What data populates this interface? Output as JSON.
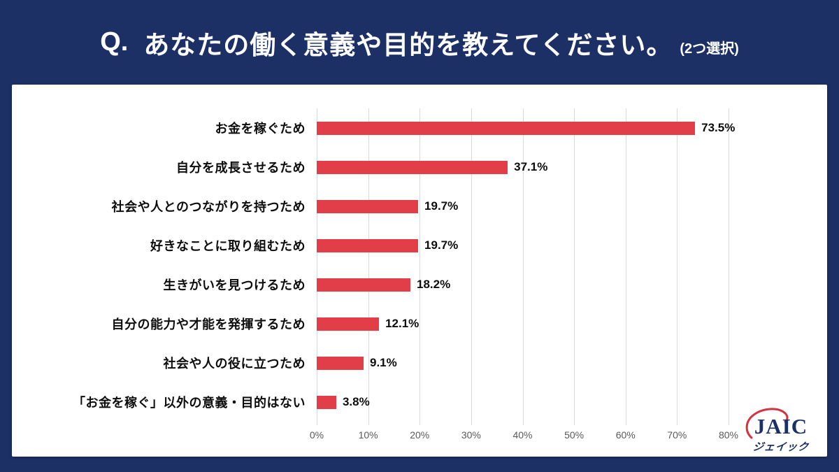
{
  "header": {
    "title_q": "Q.",
    "title_main": "あなたの働く意義や目的を教えてください。",
    "title_note": "(2つ選択)"
  },
  "chart_data": {
    "type": "bar",
    "orientation": "horizontal",
    "title": "あなたの働く意義や目的を教えてください。(2つ選択)",
    "categories": [
      "お金を稼ぐため",
      "自分を成長させるため",
      "社会や人とのつながりを持つため",
      "好きなことに取り組むため",
      "生きがいを見つけるため",
      "自分の能力や才能を発揮するため",
      "社会や人の役に立つため",
      "「お金を稼ぐ」以外の意義・目的はない"
    ],
    "values": [
      73.5,
      37.1,
      19.7,
      19.7,
      18.2,
      12.1,
      9.1,
      3.8
    ],
    "value_labels": [
      "73.5%",
      "37.1%",
      "19.7%",
      "19.7%",
      "18.2%",
      "12.1%",
      "9.1%",
      "3.8%"
    ],
    "x_ticks": [
      "0%",
      "10%",
      "20%",
      "30%",
      "40%",
      "50%",
      "60%",
      "70%",
      "80%"
    ],
    "xlim": [
      0,
      80
    ],
    "grid": true,
    "legend": false
  },
  "logo": {
    "name": "JAIC",
    "subtext": "ジェイック"
  },
  "colors": {
    "background": "#1c3066",
    "card": "#ffffff",
    "bar": "#e23e48",
    "grid": "#d9d9d9",
    "axis_text": "#595959",
    "label_text": "#0d0d0d",
    "title_text": "#ffffff",
    "logo_navy": "#1c3066",
    "logo_red": "#d6313e"
  }
}
